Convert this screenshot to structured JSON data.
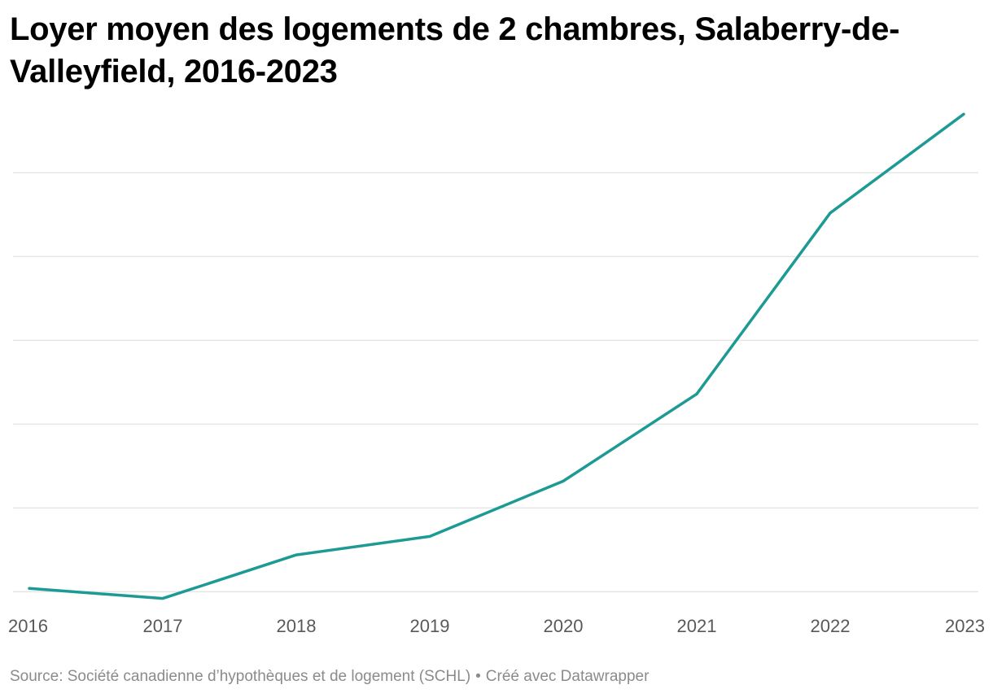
{
  "chart_data": {
    "type": "line",
    "title": "Loyer moyen des logements de 2 chambres, Salaberry-de-Valleyfield, 2016-2023",
    "xlabel": "",
    "ylabel": "",
    "x": [
      "2016",
      "2017",
      "2018",
      "2019",
      "2020",
      "2021",
      "2022",
      "2023"
    ],
    "series": [
      {
        "values": [
          652,
          646,
          672,
          683,
          716,
          768,
          876,
          935
        ]
      }
    ],
    "ylim": [
      640,
      940
    ],
    "y_gridlines": [
      650,
      700,
      750,
      800,
      850,
      900
    ],
    "grid": true,
    "line_color": "#1d9a93",
    "grid_color": "#e5e5e5",
    "tick_label_color": "#595959"
  },
  "footer": {
    "source": "Source: Société canadienne d’hypothèques et de logement (SCHL)",
    "separator": "•",
    "credit": "Créé avec Datawrapper"
  }
}
